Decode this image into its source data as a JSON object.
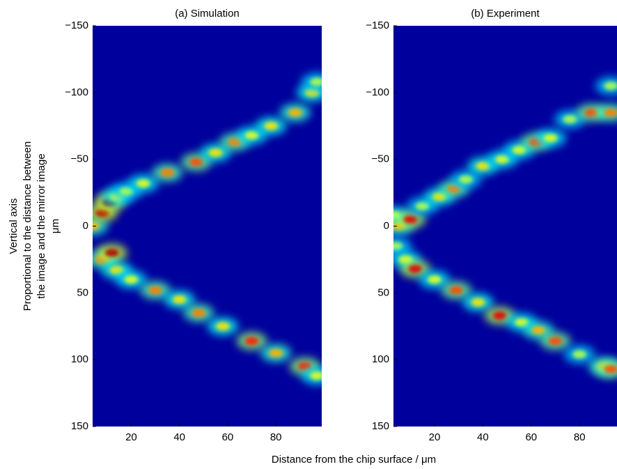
{
  "xlabel": "Distance from the chip surface  /  μm",
  "chart_data": [
    {
      "type": "heatmap",
      "title": "(a) Simulation",
      "ylabel": [
        "Vertical axis",
        "Proportional to the distance between",
        "the image and the mirror image",
        "μm"
      ],
      "background": "#00009c",
      "xlim": [
        4,
        99
      ],
      "ylim": [
        -150,
        150
      ],
      "y_inverted": true,
      "xticks": [
        20,
        40,
        60,
        80
      ],
      "yticks": [
        {
          "value": -150,
          "label": "−150"
        },
        {
          "value": -100,
          "label": "−100"
        },
        {
          "value": -50,
          "label": "−50"
        },
        0,
        50,
        100,
        150
      ],
      "x": [
        4,
        8,
        11,
        14,
        18,
        25,
        35,
        47,
        55,
        63,
        70,
        78,
        88,
        95,
        97,
        8,
        12,
        14,
        20,
        30,
        40,
        48,
        58,
        70,
        80,
        92,
        97
      ],
      "y": [
        0,
        -10,
        -18,
        -22,
        -26,
        -32,
        -40,
        -48,
        -55,
        -63,
        -68,
        -75,
        -85,
        -100,
        -108,
        25,
        20,
        33,
        40,
        48,
        55,
        65,
        75,
        86,
        95,
        105,
        112
      ],
      "values": [
        0.7,
        0.95,
        1,
        0.6,
        0.55,
        0.6,
        0.75,
        0.8,
        0.65,
        0.75,
        0.6,
        0.65,
        0.7,
        0.65,
        0.55,
        0.75,
        0.95,
        0.65,
        0.6,
        0.75,
        0.65,
        0.75,
        0.65,
        0.85,
        0.7,
        0.85,
        0.6
      ]
    },
    {
      "type": "heatmap",
      "title": "(b) Experiment",
      "background": "#00009c",
      "xlim": [
        3,
        95.5
      ],
      "ylim": [
        -150,
        150
      ],
      "y_inverted": true,
      "xticks": [
        20,
        40,
        60,
        80
      ],
      "yticks": [
        {
          "value": -150,
          "label": "−150"
        },
        {
          "value": -100,
          "label": "−100"
        },
        {
          "value": -50,
          "label": "−50"
        },
        0,
        50,
        100,
        150
      ],
      "x": [
        3,
        5,
        10,
        15,
        22,
        28,
        33,
        40,
        48,
        55,
        62,
        68,
        76,
        85,
        93,
        93,
        4,
        8,
        12,
        20,
        29,
        38,
        47,
        56,
        63,
        70,
        80,
        90,
        93
      ],
      "y": [
        -8,
        0,
        -5,
        -15,
        -22,
        -28,
        -35,
        -45,
        -50,
        -57,
        -63,
        -66,
        -80,
        -85,
        -85,
        -105,
        15,
        25,
        32,
        40,
        48,
        57,
        67,
        72,
        78,
        86,
        96,
        105,
        107
      ],
      "values": [
        0.6,
        0.7,
        0.9,
        0.55,
        0.65,
        0.75,
        0.55,
        0.65,
        0.6,
        0.6,
        0.8,
        0.6,
        0.55,
        0.8,
        0.75,
        0.55,
        0.55,
        0.6,
        0.9,
        0.6,
        0.8,
        0.65,
        0.9,
        0.6,
        0.7,
        0.8,
        0.55,
        0.7,
        0.8
      ]
    }
  ]
}
